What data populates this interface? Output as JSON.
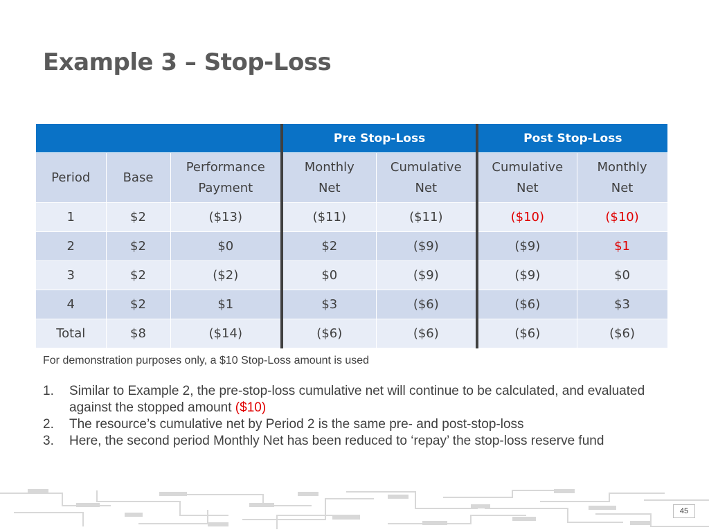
{
  "title": "Example 3 – Stop-Loss",
  "table": {
    "group_headers": [
      "",
      "Pre  Stop-Loss",
      "Post Stop-Loss"
    ],
    "columns": [
      {
        "line1": "Period",
        "line2": ""
      },
      {
        "line1": "Base",
        "line2": ""
      },
      {
        "line1": "Performance",
        "line2": "Payment"
      },
      {
        "line1": "Monthly",
        "line2": "Net"
      },
      {
        "line1": "Cumulative",
        "line2": "Net"
      },
      {
        "line1": "Cumulative",
        "line2": "Net"
      },
      {
        "line1": "Monthly",
        "line2": "Net"
      }
    ],
    "rows": [
      [
        "1",
        "$2",
        "($13)",
        "($11)",
        "($11)",
        "($10)",
        "($10)"
      ],
      [
        "2",
        "$2",
        "$0",
        "$2",
        "($9)",
        "($9)",
        "$1"
      ],
      [
        "3",
        "$2",
        "($2)",
        "$0",
        "($9)",
        "($9)",
        "$0"
      ],
      [
        "4",
        "$2",
        "$1",
        "$3",
        "($6)",
        "($6)",
        "$3"
      ],
      [
        "Total",
        "$8",
        "($14)",
        "($6)",
        "($6)",
        "($6)",
        "($6)"
      ]
    ],
    "highlight_color": "#e00000",
    "header_color": "#0a72c6"
  },
  "footnote": "For demonstration purposes only, a $10 Stop-Loss amount is used",
  "notes": [
    {
      "num": "1.",
      "text": "Similar to Example 2, the pre-stop-loss cumulative net will continue to be calculated, and evaluated against the stopped amount ",
      "highlight": "($10)"
    },
    {
      "num": "2.",
      "text": "The resource’s cumulative net by Period 2 is the same pre- and post-stop-loss"
    },
    {
      "num": "3.",
      "text": "Here, the second period Monthly Net has been reduced to ‘repay’ the stop-loss reserve fund"
    }
  ],
  "page_number": "45"
}
